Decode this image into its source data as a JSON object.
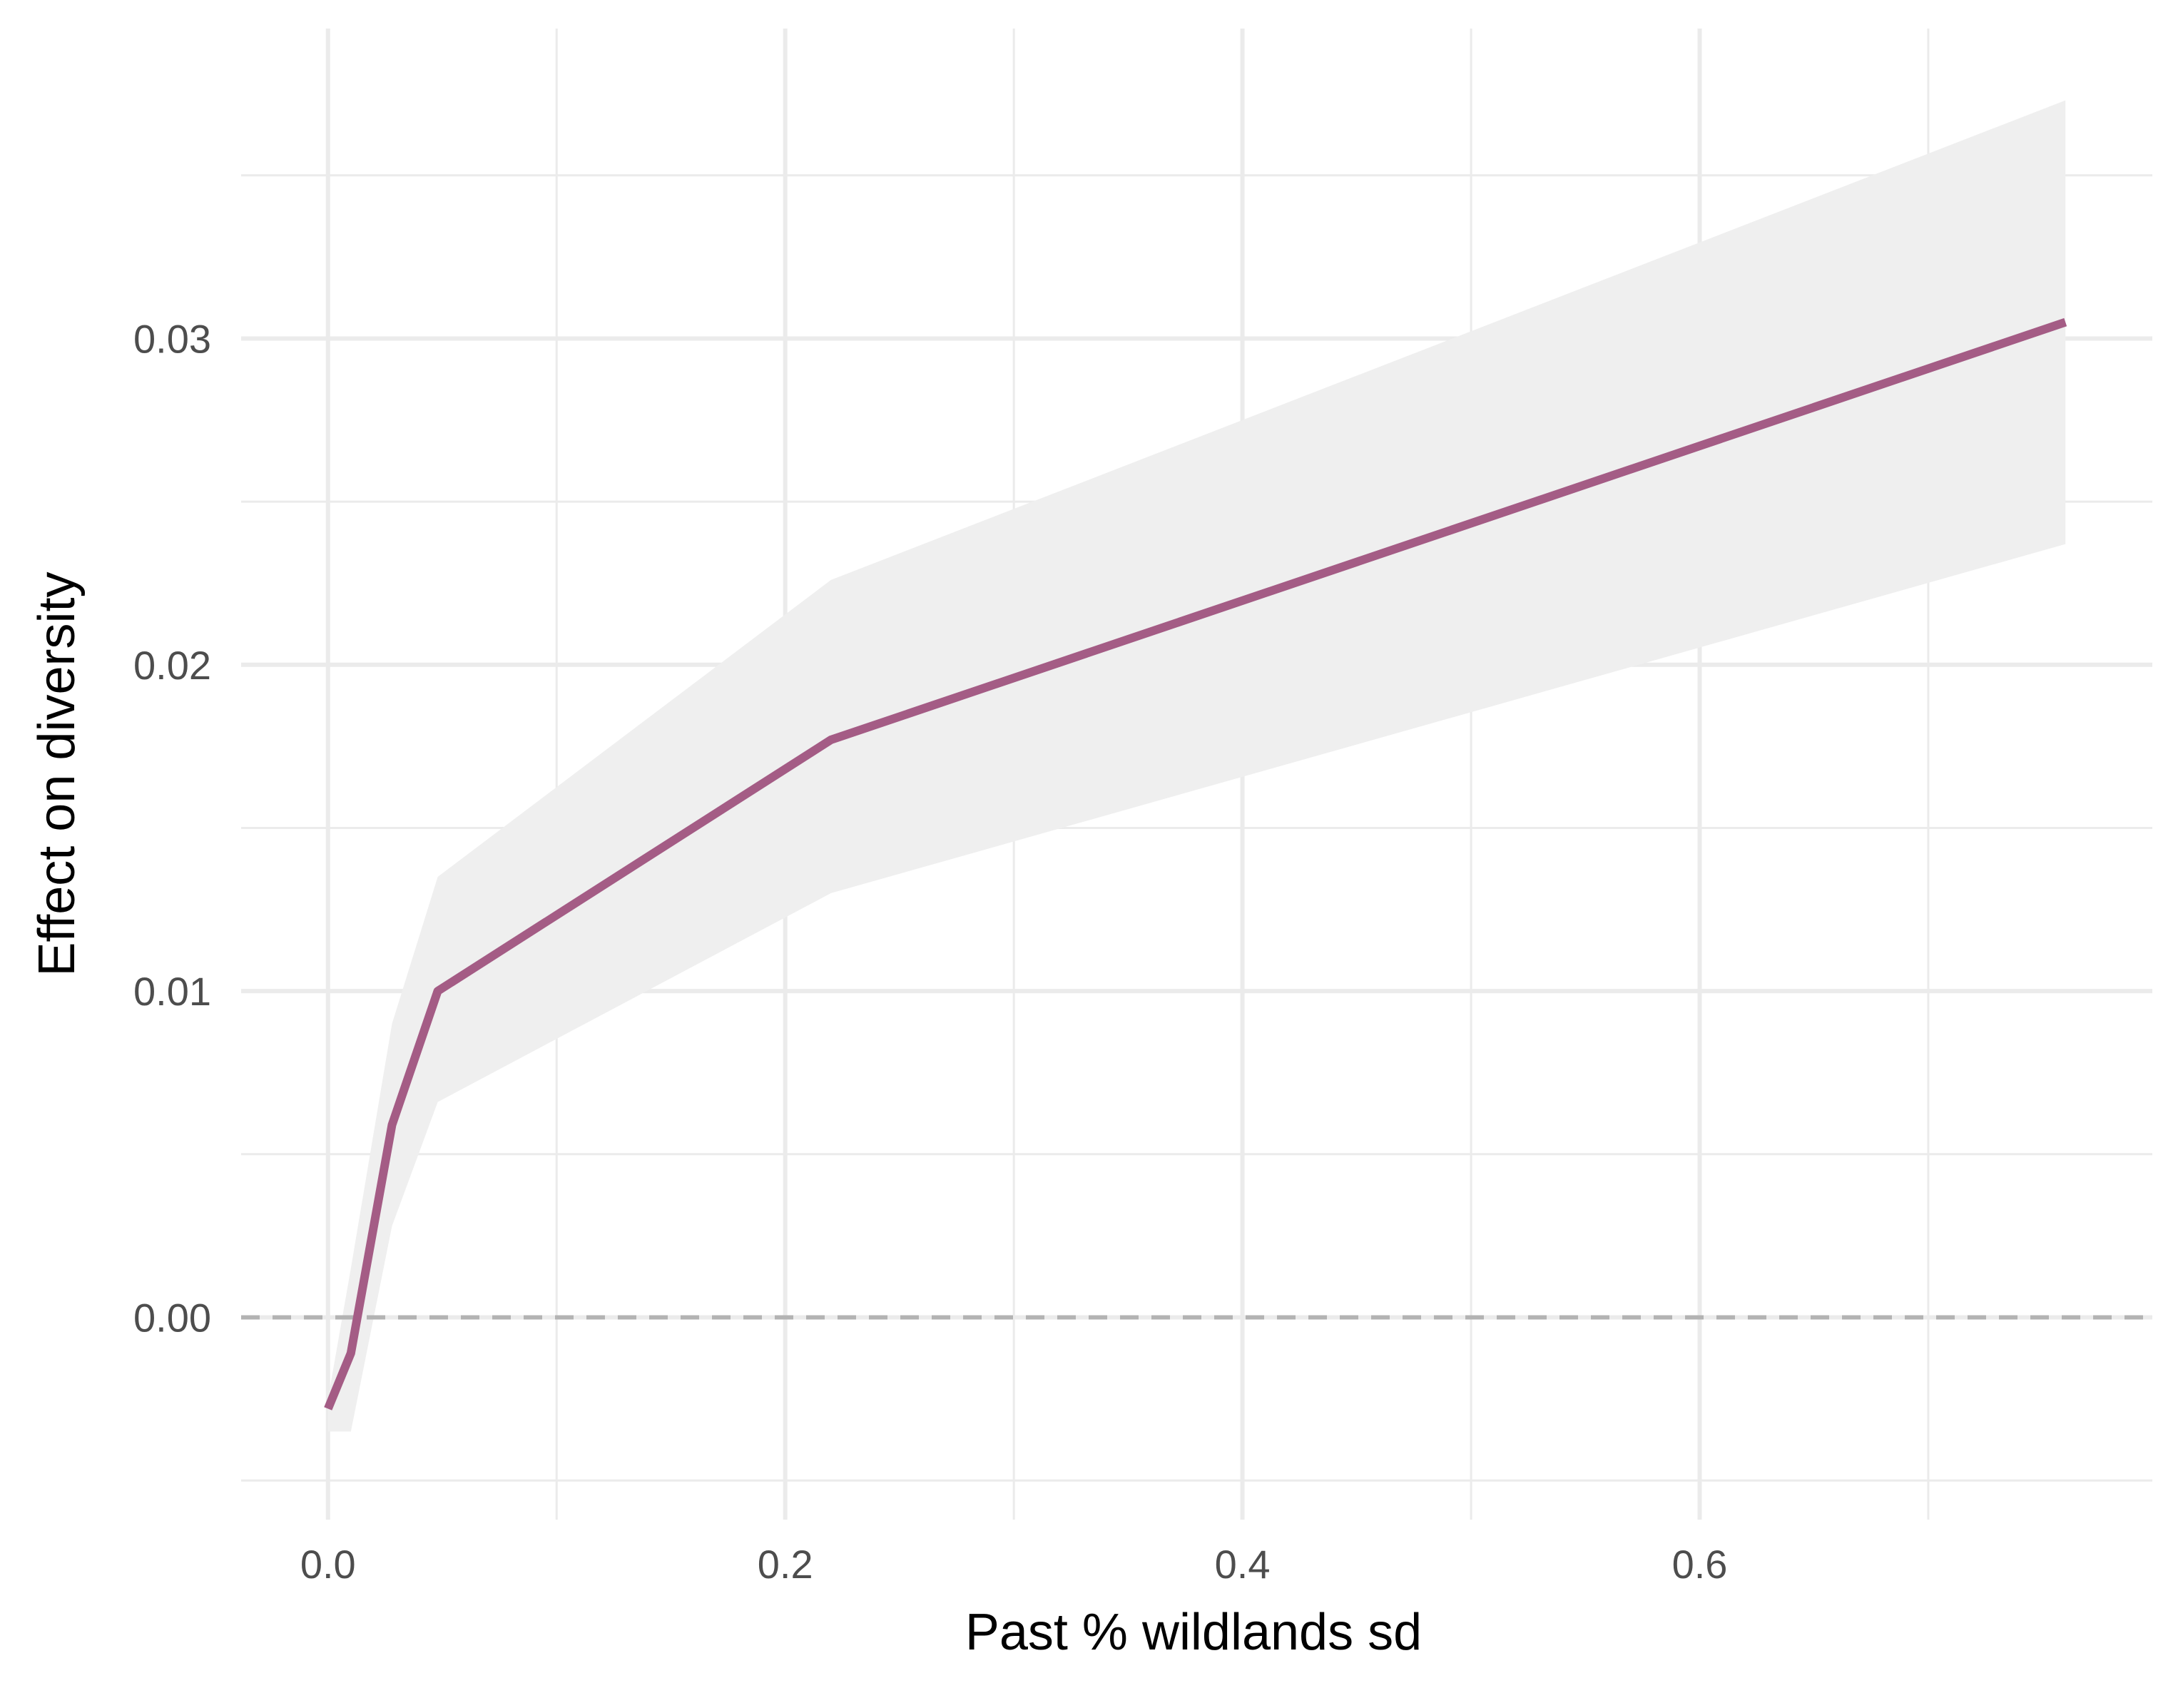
{
  "chart_data": {
    "type": "line",
    "title": "",
    "xlabel": "Past % wildlands sd",
    "ylabel": "Effect on diversity",
    "xlim": [
      -0.038,
      0.798
    ],
    "ylim": [
      -0.0062,
      0.0395
    ],
    "x_ticks": [
      0.0,
      0.2,
      0.4,
      0.6
    ],
    "x_tick_labels": [
      "0.0",
      "0.2",
      "0.4",
      "0.6"
    ],
    "x_minor_ticks": [
      0.1,
      0.3,
      0.5,
      0.7
    ],
    "y_ticks": [
      0.0,
      0.01,
      0.02,
      0.03
    ],
    "y_tick_labels": [
      "0.00",
      "0.01",
      "0.02",
      "0.03"
    ],
    "y_minor_ticks": [
      -0.005,
      0.005,
      0.015,
      0.025,
      0.035
    ],
    "grid": true,
    "reference_line": {
      "y": 0.0,
      "style": "dashed",
      "color": "#b3b3b3"
    },
    "series": [
      {
        "color": "#a45c85",
        "ribbon_color": "#efefef",
        "x": [
          0.0,
          0.01,
          0.028,
          0.048,
          0.22,
          0.76
        ],
        "y": [
          -0.0028,
          -0.0011,
          0.0059,
          0.01,
          0.0177,
          0.0305
        ],
        "lower": [
          -0.0035,
          -0.0035,
          0.0028,
          0.0066,
          0.013,
          0.0237
        ],
        "upper": [
          -0.0025,
          0.0015,
          0.009,
          0.0135,
          0.0226,
          0.0373
        ]
      }
    ]
  }
}
